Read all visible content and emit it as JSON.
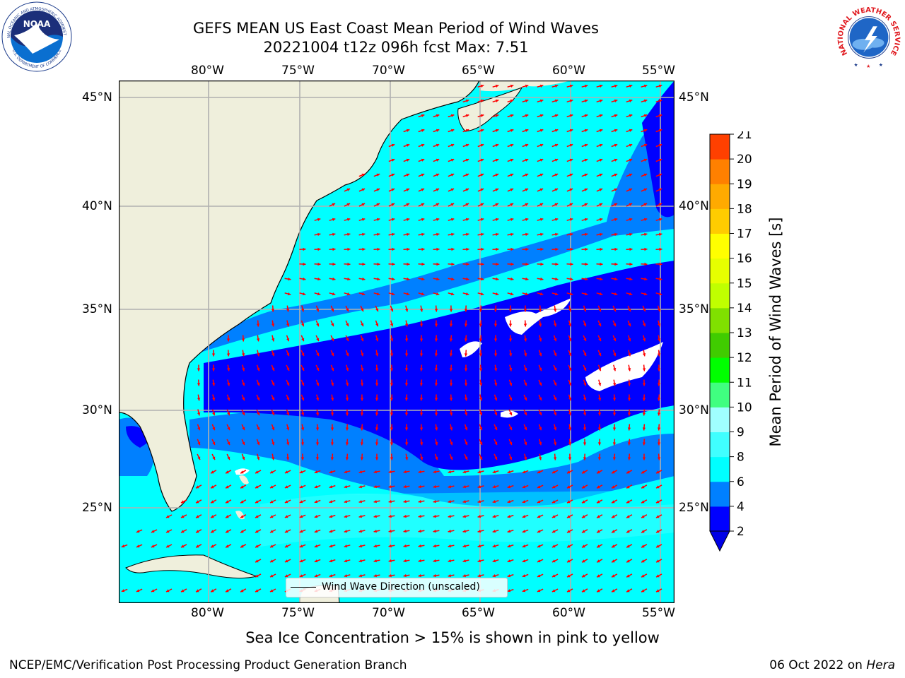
{
  "header": {
    "title_line1": "GEFS MEAN US East Coast Mean Period of Wind Waves",
    "title_line2": "20221004 t12z 096h fcst   Max: 7.51"
  },
  "logos": {
    "noaa_text": "NOAA",
    "noaa_ring_text": "NATIONAL OCEANIC AND ATMOSPHERIC ADMINISTRATION",
    "noaa_ring_text_bottom": "U.S. DEPARTMENT OF COMMERCE",
    "nws_ring_text": "NATIONAL WEATHER SERVICE"
  },
  "axes": {
    "lon_labels": [
      "80°W",
      "75°W",
      "70°W",
      "65°W",
      "60°W",
      "55°W"
    ],
    "lat_labels": [
      "45°N",
      "40°N",
      "35°N",
      "30°N",
      "25°N"
    ]
  },
  "legend": {
    "label": "Wind Wave Direction (unscaled)"
  },
  "colorbar": {
    "label": "Mean Period of Wind Waves [s]",
    "ticks": [
      2,
      4,
      6,
      8,
      9,
      10,
      11,
      12,
      13,
      14,
      15,
      16,
      17,
      18,
      19,
      20,
      21
    ],
    "colors": [
      "#0000ff",
      "#0080ff",
      "#00ffff",
      "#40ffff",
      "#a0ffff",
      "#40ff80",
      "#00ff00",
      "#40cc00",
      "#80e000",
      "#c0ff00",
      "#e6ff00",
      "#ffff00",
      "#ffcc00",
      "#ffaa00",
      "#ff8000",
      "#ff4000",
      "#ff0000"
    ],
    "under_color": "#0000e6"
  },
  "colors": {
    "land": "#efefdc",
    "ocean_short": "#00ffff",
    "ocean_mid": "#0080ff",
    "ocean_long": "#0000ff",
    "ocean_pale": "#40ffff",
    "arrow": "#ff0000",
    "grid": "#b0b0b0"
  },
  "notes": {
    "ice_note": "Sea Ice Concentration > 15% is shown in pink to yellow"
  },
  "footer": {
    "left": "NCEP/EMC/Verification Post Processing Product Generation Branch",
    "right_date": "06 Oct 2022 on ",
    "right_machine": "Hera"
  }
}
